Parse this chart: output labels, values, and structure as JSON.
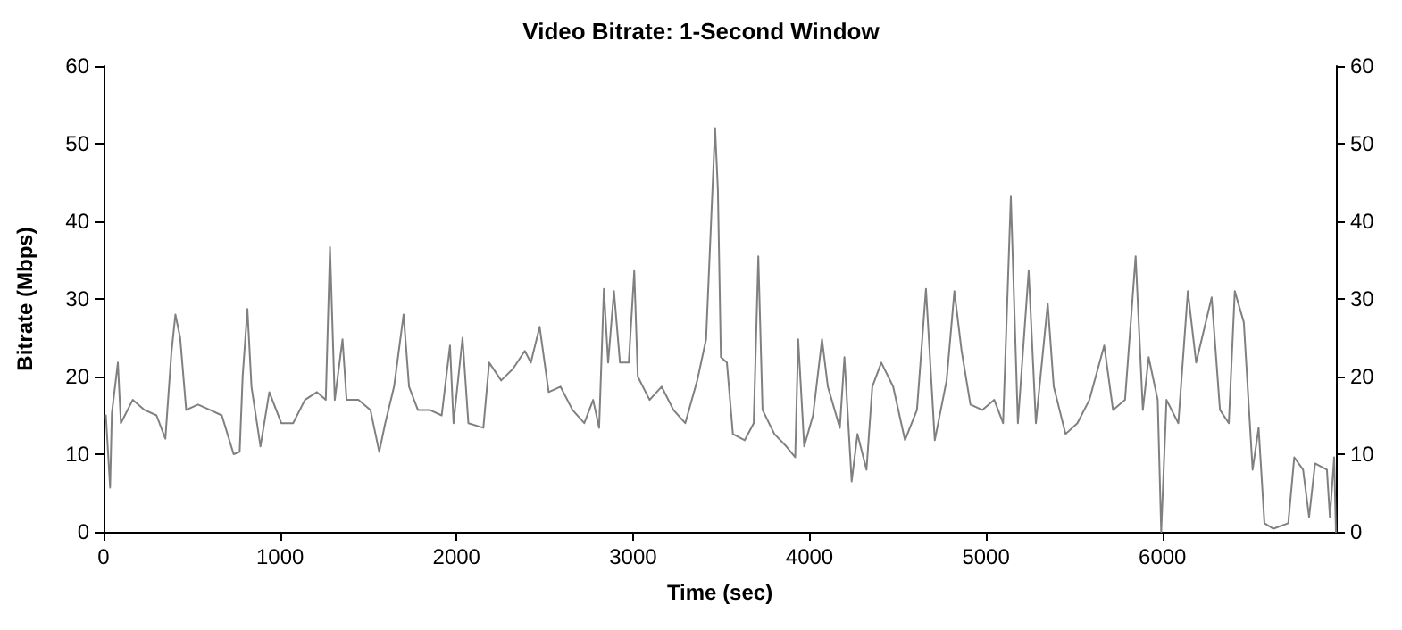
{
  "chart_data": {
    "type": "line",
    "title": "Video Bitrate: 1-Second Window",
    "xlabel": "Time (sec)",
    "ylabel": "Bitrate (Mbps)",
    "xlim": [
      0,
      6983
    ],
    "xticks": [
      0,
      1000,
      2000,
      3000,
      4000,
      5000,
      6000
    ],
    "ylim": [
      0,
      60
    ],
    "yticks": [
      0,
      10,
      20,
      30,
      40,
      50,
      60
    ],
    "y2lim": [
      0,
      60
    ],
    "y2ticks": [
      0,
      10,
      20,
      30,
      40,
      50,
      60
    ],
    "marker": "none",
    "line_style": "solid",
    "series": [
      {
        "color": "#808080",
        "x": [
          13,
          37,
          47,
          81,
          98,
          165,
          232,
          300,
          350,
          384,
          407,
          434,
          468,
          535,
          603,
          670,
          737,
          771,
          788,
          815,
          838,
          889,
          939,
          1007,
          1074,
          1141,
          1209,
          1259,
          1283,
          1310,
          1354,
          1377,
          1444,
          1512,
          1562,
          1596,
          1646,
          1700,
          1731,
          1781,
          1848,
          1916,
          1963,
          1983,
          2034,
          2067,
          2152,
          2185,
          2253,
          2320,
          2387,
          2421,
          2471,
          2522,
          2589,
          2657,
          2724,
          2774,
          2808,
          2835,
          2859,
          2892,
          2926,
          2976,
          3007,
          3027,
          3094,
          3162,
          3229,
          3296,
          3364,
          3414,
          3465,
          3481,
          3498,
          3532,
          3566,
          3633,
          3684,
          3710,
          3734,
          3801,
          3869,
          3919,
          3936,
          3970,
          4020,
          4071,
          4104,
          4172,
          4198,
          4239,
          4272,
          4323,
          4356,
          4407,
          4474,
          4541,
          4609,
          4660,
          4710,
          4777,
          4821,
          4862,
          4912,
          4979,
          5047,
          5097,
          5141,
          5181,
          5242,
          5283,
          5350,
          5384,
          5451,
          5518,
          5586,
          5670,
          5720,
          5788,
          5848,
          5889,
          5922,
          5973,
          5993,
          6023,
          6090,
          6144,
          6191,
          6279,
          6326,
          6376,
          6410,
          6461,
          6511,
          6545,
          6578,
          6629,
          6713,
          6747,
          6797,
          6831,
          6865,
          6932,
          6949,
          6973,
          6983
        ],
        "values": [
          15,
          5.7,
          15.3,
          21.8,
          14,
          17,
          15.7,
          15,
          12,
          23,
          28,
          25,
          15.7,
          16.4,
          15.7,
          15,
          10,
          10.3,
          20,
          28.7,
          18.7,
          11,
          18,
          14,
          14,
          17,
          18,
          17,
          36.7,
          17,
          24.8,
          17,
          17,
          15.7,
          10.3,
          14,
          18.7,
          28,
          18.7,
          15.7,
          15.7,
          15,
          24,
          14,
          25,
          14,
          13.4,
          21.8,
          19.5,
          21,
          23.3,
          21.8,
          26.4,
          18,
          18.7,
          15.7,
          14,
          17,
          13.4,
          31.3,
          21.8,
          31,
          21.8,
          21.8,
          33.6,
          20,
          17,
          18.7,
          15.7,
          14,
          19.5,
          24.8,
          52,
          44,
          22.5,
          21.8,
          12.6,
          11.8,
          14,
          35.5,
          15.7,
          12.6,
          11,
          9.6,
          24.8,
          11,
          15,
          24.8,
          18.7,
          13.4,
          22.5,
          6.5,
          12.6,
          8,
          18.7,
          21.8,
          18.7,
          11.8,
          15.7,
          31.3,
          11.8,
          19.5,
          31,
          23.3,
          16.4,
          15.7,
          17,
          14,
          43.2,
          14,
          33.6,
          14,
          29.4,
          18.7,
          12.6,
          14,
          17,
          24,
          15.7,
          17,
          35.5,
          15.7,
          22.5,
          17,
          0,
          17,
          14,
          31,
          21.8,
          30.2,
          15.7,
          14,
          31,
          27,
          8,
          13.4,
          1.1,
          0.4,
          1.1,
          9.6,
          8,
          1.9,
          8.8,
          8,
          1.9,
          9.6,
          0
        ]
      }
    ]
  }
}
